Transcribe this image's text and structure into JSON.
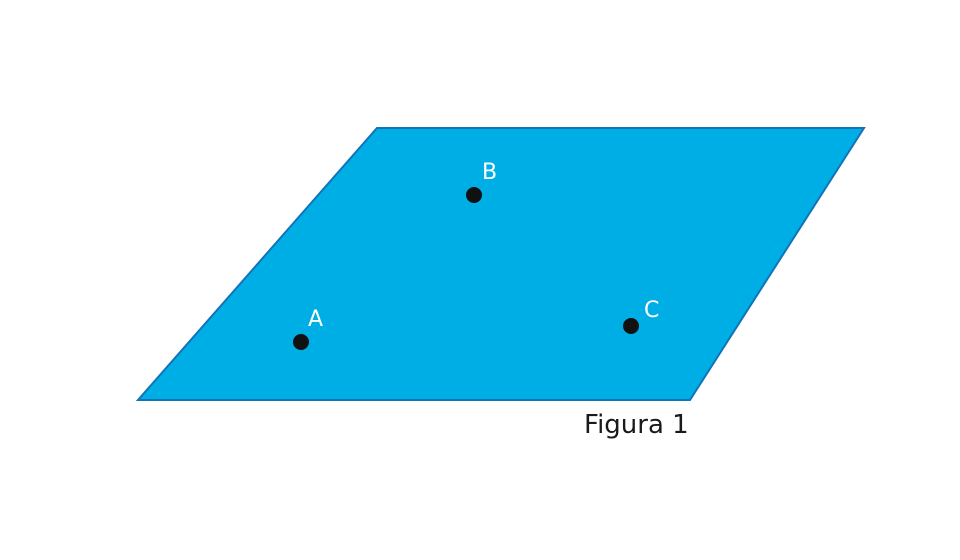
{
  "figure": {
    "caption": "Figura 1",
    "plane_color": "#00aee6",
    "plane_edge_color": "#1273b8",
    "point_color": "#111111",
    "label_color": "#ffffff",
    "points": [
      {
        "label": "A"
      },
      {
        "label": "B"
      },
      {
        "label": "C"
      }
    ]
  }
}
